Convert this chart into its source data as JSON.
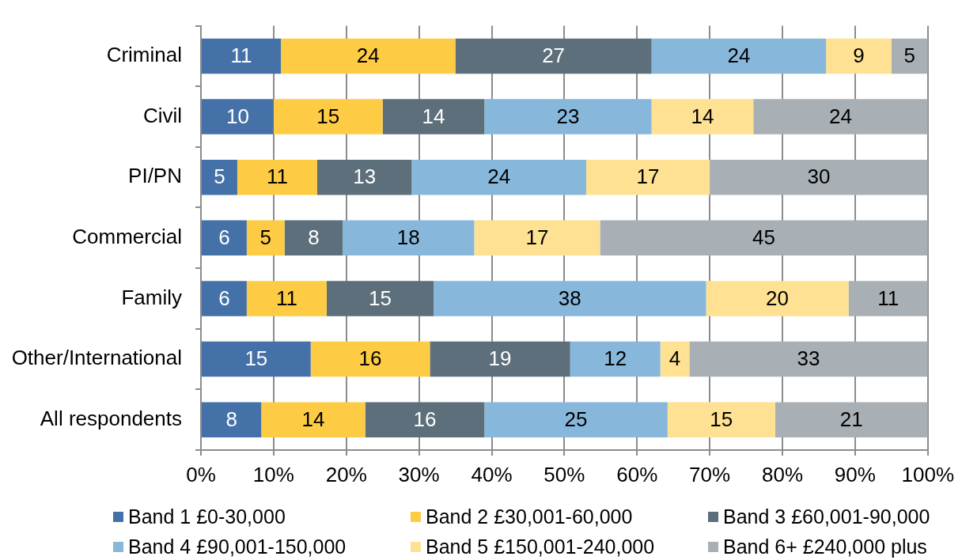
{
  "chart_data": {
    "type": "bar",
    "orientation": "horizontal",
    "stacked": true,
    "categories": [
      "Criminal",
      "Civil",
      "PI/PN",
      "Commercial",
      "Family",
      "Other/International",
      "All respondents"
    ],
    "xlim": [
      0,
      100
    ],
    "xticks": [
      {
        "value": 0,
        "label": "0%"
      },
      {
        "value": 10,
        "label": "10%"
      },
      {
        "value": 20,
        "label": "20%"
      },
      {
        "value": 30,
        "label": "30%"
      },
      {
        "value": 40,
        "label": "40%"
      },
      {
        "value": 50,
        "label": "50%"
      },
      {
        "value": 60,
        "label": "60%"
      },
      {
        "value": 70,
        "label": "70%"
      },
      {
        "value": 80,
        "label": "80%"
      },
      {
        "value": 90,
        "label": "90%"
      },
      {
        "value": 100,
        "label": "100%"
      }
    ],
    "grid": "x",
    "legend": "bottom",
    "series": [
      {
        "name": "Band 1 £0-30,000",
        "color": "#4472a8",
        "values": [
          11,
          10,
          5,
          6.3,
          6.3,
          15.1,
          8.3
        ],
        "value_labels": [
          "11",
          "10",
          "5",
          "6",
          "6",
          "15",
          "8"
        ]
      },
      {
        "name": "Band 2 £30,001-60,000",
        "color": "#fecb45",
        "values": [
          24,
          15,
          11,
          5.2,
          11.0,
          16.4,
          14.3
        ],
        "value_labels": [
          "24",
          "15",
          "11",
          "5",
          "11",
          "16",
          "14"
        ]
      },
      {
        "name": "Band 3 £60,001-90,000",
        "color": "#5c6f7b",
        "values": [
          27,
          14,
          13,
          8.0,
          14.7,
          19.3,
          16.4
        ],
        "value_labels": [
          "27",
          "14",
          "13",
          "8",
          "15",
          "19",
          "16"
        ]
      },
      {
        "name": "Band 4 £90,001-150,000",
        "color": "#87b8dc",
        "values": [
          24,
          23,
          24,
          18.1,
          37.5,
          12.4,
          25.2
        ],
        "value_labels": [
          "24",
          "23",
          "24",
          "18",
          "38",
          "12",
          "25"
        ]
      },
      {
        "name": "Band 5 £150,001-240,000",
        "color": "#fee192",
        "values": [
          9,
          14,
          17,
          17.3,
          19.6,
          4.0,
          14.8
        ],
        "value_labels": [
          "9",
          "14",
          "17",
          "17",
          "20",
          "4",
          "15"
        ]
      },
      {
        "name": "Band 6+ £240,000 plus",
        "color": "#a9b0b5",
        "values": [
          5,
          24,
          30,
          45.1,
          10.9,
          32.8,
          21.0
        ],
        "value_labels": [
          "5",
          "24",
          "30",
          "45",
          "11",
          "33",
          "21"
        ]
      }
    ]
  }
}
